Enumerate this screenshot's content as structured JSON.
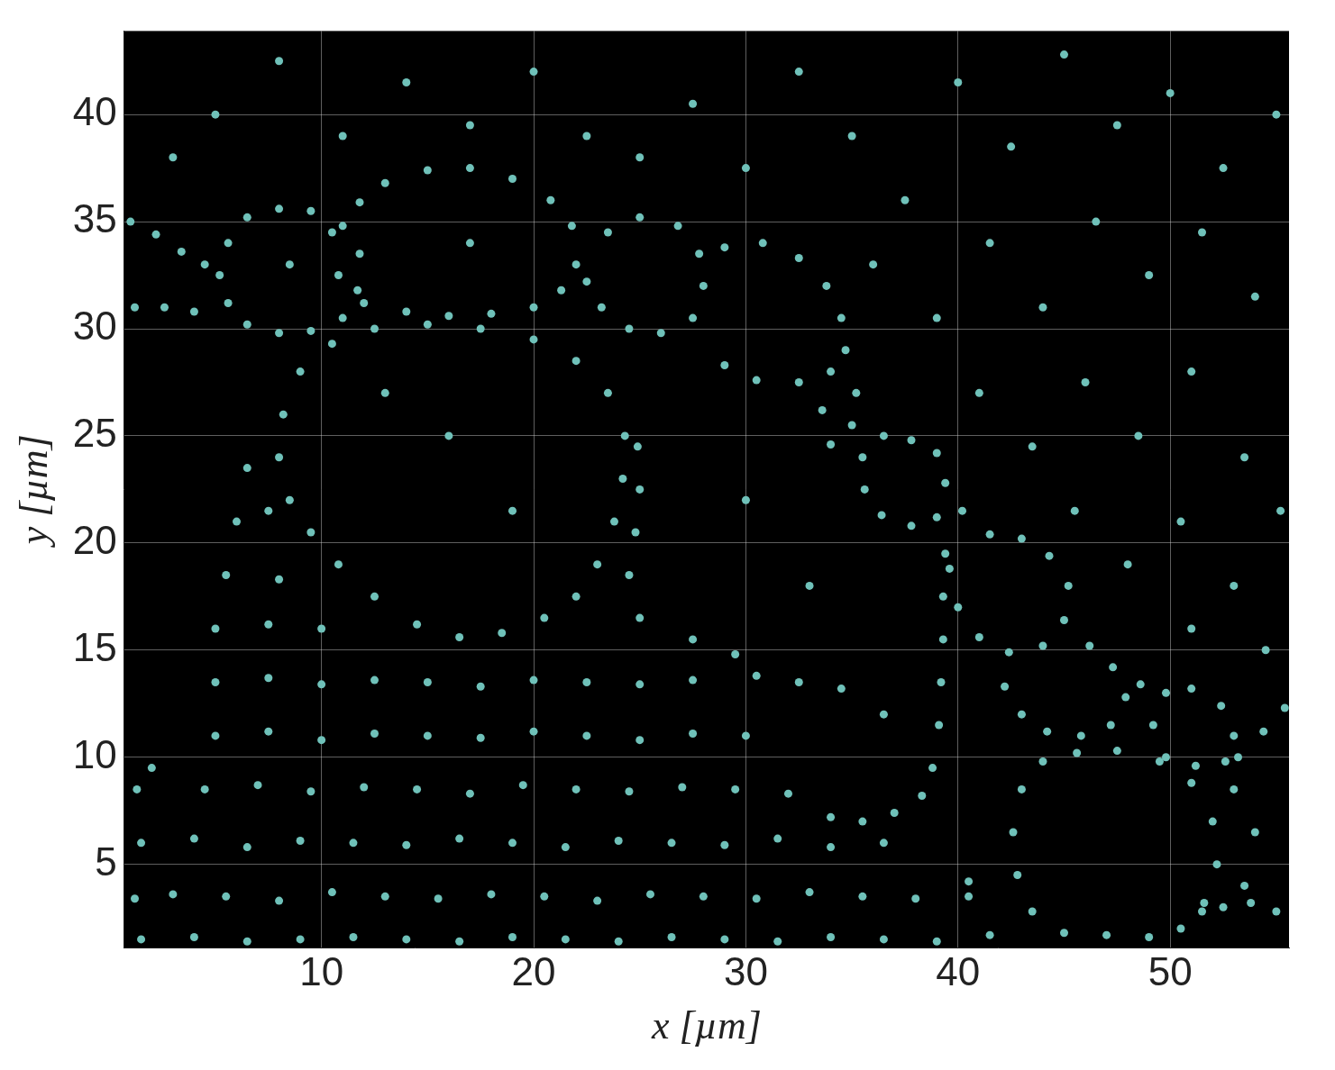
{
  "chart_data": {
    "type": "scatter",
    "x_label": "x [µm]",
    "y_label": "y [µm]",
    "xlim": [
      0.7,
      55.6
    ],
    "ylim": [
      1.1,
      43.9
    ],
    "xticks": [
      10,
      20,
      30,
      40,
      50
    ],
    "yticks": [
      5,
      10,
      15,
      20,
      25,
      30,
      35,
      40
    ],
    "grid": true,
    "color": "#6fc1b9",
    "marker": "circle",
    "x": [
      1.0,
      2.2,
      3.4,
      4.5,
      1.2,
      2.6,
      4.0,
      5.2,
      5.6,
      6.5,
      8.0,
      9.5,
      11.0,
      11.8,
      11.7,
      11.0,
      9.5,
      8.0,
      6.5,
      5.6,
      10.5,
      11.8,
      13.0,
      15.0,
      17.0,
      19.0,
      20.8,
      21.8,
      22.0,
      21.3,
      20.0,
      18.0,
      16.0,
      14.0,
      12.0,
      10.8,
      8.0,
      8.2,
      9.0,
      10.5,
      12.5,
      15.0,
      17.5,
      20.0,
      22.0,
      23.5,
      24.3,
      24.2,
      23.8,
      23.0,
      22.0,
      20.5,
      18.5,
      16.5,
      14.5,
      12.5,
      10.8,
      9.5,
      8.5,
      22.5,
      23.5,
      25.0,
      26.8,
      27.8,
      28.0,
      27.5,
      26.0,
      24.5,
      23.2,
      29.0,
      30.8,
      32.5,
      33.8,
      34.5,
      34.7,
      34.0,
      32.5,
      30.5,
      29.0,
      35.2,
      35.0,
      34.0,
      33.6,
      35.5,
      36.5,
      37.8,
      39.0,
      39.4,
      39.0,
      37.8,
      36.4,
      35.6,
      40.2,
      41.5,
      43.0,
      44.3,
      45.2,
      45.0,
      44.0,
      42.4,
      41.0,
      40.0,
      39.6,
      46.2,
      47.3,
      47.9,
      47.2,
      45.8,
      44.2,
      43.0,
      42.2,
      48.6,
      49.8,
      39.4,
      39.3,
      39.3,
      39.2,
      39.1,
      38.8,
      38.3,
      37.0,
      35.5,
      34.0,
      51.0,
      52.4,
      53.0,
      52.6,
      51.2,
      49.8,
      49.2,
      44.0,
      45.6,
      47.5,
      49.5,
      51.0,
      52.0,
      52.2,
      51.6,
      50.5,
      43.0,
      42.6,
      42.8,
      43.5,
      53.2,
      54.4,
      55.4,
      53.0,
      54.0,
      53.5,
      51.5,
      52.5,
      53.8,
      55.0,
      45.0,
      47.0,
      49.0,
      40.5,
      1.5,
      4.0,
      6.5,
      9.0,
      11.5,
      14.0,
      16.5,
      19.0,
      21.5,
      24.0,
      26.5,
      29.0,
      31.5,
      34.0,
      36.5,
      39.0,
      41.5,
      1.2,
      3.0,
      5.5,
      8.0,
      10.5,
      13.0,
      15.5,
      18.0,
      20.5,
      23.0,
      25.5,
      28.0,
      30.5,
      33.0,
      35.5,
      38.0,
      40.5,
      1.5,
      4.0,
      6.5,
      9.0,
      11.5,
      14.0,
      16.5,
      19.0,
      21.5,
      24.0,
      26.5,
      29.0,
      31.5,
      34.0,
      36.5,
      4.5,
      7.0,
      9.5,
      12.0,
      14.5,
      17.0,
      19.5,
      22.0,
      24.5,
      27.0,
      29.5,
      32.0,
      5.0,
      7.5,
      10.0,
      12.5,
      15.0,
      17.5,
      20.0,
      22.5,
      25.0,
      27.5,
      30.0,
      5.0,
      7.5,
      10.0,
      12.5,
      15.0,
      17.5,
      20.0,
      22.5,
      25.0,
      27.5,
      30.5,
      32.5,
      34.5,
      5.0,
      7.5,
      10.0,
      5.5,
      8.0,
      6.0,
      7.5,
      6.5,
      25.0,
      27.5,
      29.5,
      24.5,
      24.8,
      25.0,
      24.9,
      1.3,
      2.0,
      25.0,
      27.5,
      30.0,
      32.5,
      35.0,
      37.5,
      40.0,
      42.5,
      45.0,
      47.5,
      50.0,
      52.5,
      55.0,
      36.0,
      39.0,
      41.5,
      44.0,
      46.5,
      49.0,
      51.5,
      54.0,
      41.0,
      43.5,
      46.0,
      48.5,
      51.0,
      53.5,
      45.5,
      48.0,
      50.5,
      53.0,
      55.2,
      51.0,
      54.5,
      5.0,
      8.0,
      11.0,
      14.0,
      17.0,
      20.0,
      22.5,
      3.0,
      16.0,
      19.0,
      13.0,
      30.0,
      33.0,
      36.5,
      8.5,
      17.0
    ],
    "values": [
      35.0,
      34.4,
      33.6,
      33.0,
      31.0,
      31.0,
      30.8,
      32.5,
      34.0,
      35.2,
      35.6,
      35.5,
      34.8,
      33.5,
      31.8,
      30.5,
      29.9,
      29.8,
      30.2,
      31.2,
      34.5,
      35.9,
      36.8,
      37.4,
      37.5,
      37.0,
      36.0,
      34.8,
      33.0,
      31.8,
      31.0,
      30.7,
      30.6,
      30.8,
      31.2,
      32.5,
      24.0,
      26.0,
      28.0,
      29.3,
      30.0,
      30.2,
      30.0,
      29.5,
      28.5,
      27.0,
      25.0,
      23.0,
      21.0,
      19.0,
      17.5,
      16.5,
      15.8,
      15.6,
      16.2,
      17.5,
      19.0,
      20.5,
      22.0,
      32.2,
      34.5,
      35.2,
      34.8,
      33.5,
      32.0,
      30.5,
      29.8,
      30.0,
      31.0,
      33.8,
      34.0,
      33.3,
      32.0,
      30.5,
      29.0,
      28.0,
      27.5,
      27.6,
      28.3,
      27.0,
      25.5,
      24.6,
      26.2,
      24.0,
      25.0,
      24.8,
      24.2,
      22.8,
      21.2,
      20.8,
      21.3,
      22.5,
      21.5,
      20.4,
      20.2,
      19.4,
      18.0,
      16.4,
      15.2,
      14.9,
      15.6,
      17.0,
      18.8,
      15.2,
      14.2,
      12.8,
      11.5,
      11.0,
      11.2,
      12.0,
      13.3,
      13.4,
      13.0,
      19.5,
      17.5,
      15.5,
      13.5,
      11.5,
      9.5,
      8.2,
      7.4,
      7.0,
      7.2,
      13.2,
      12.4,
      11.0,
      9.8,
      9.6,
      10.0,
      11.5,
      9.8,
      10.2,
      10.3,
      9.8,
      8.8,
      7.0,
      5.0,
      3.2,
      2.0,
      8.5,
      6.5,
      4.5,
      2.8,
      10.0,
      11.2,
      12.3,
      8.5,
      6.5,
      4.0,
      2.8,
      3.0,
      3.2,
      2.8,
      1.8,
      1.7,
      1.6,
      3.5,
      1.5,
      1.6,
      1.4,
      1.5,
      1.6,
      1.5,
      1.4,
      1.6,
      1.5,
      1.4,
      1.6,
      1.5,
      1.4,
      1.6,
      1.5,
      1.4,
      1.7,
      3.4,
      3.6,
      3.5,
      3.3,
      3.7,
      3.5,
      3.4,
      3.6,
      3.5,
      3.3,
      3.6,
      3.5,
      3.4,
      3.7,
      3.5,
      3.4,
      4.2,
      6.0,
      6.2,
      5.8,
      6.1,
      6.0,
      5.9,
      6.2,
      6.0,
      5.8,
      6.1,
      6.0,
      5.9,
      6.2,
      5.8,
      6.0,
      8.5,
      8.7,
      8.4,
      8.6,
      8.5,
      8.3,
      8.7,
      8.5,
      8.4,
      8.6,
      8.5,
      8.3,
      11.0,
      11.2,
      10.8,
      11.1,
      11.0,
      10.9,
      11.2,
      11.0,
      10.8,
      11.1,
      11.0,
      13.5,
      13.7,
      13.4,
      13.6,
      13.5,
      13.3,
      13.6,
      13.5,
      13.4,
      13.6,
      13.8,
      13.5,
      13.2,
      16.0,
      16.2,
      16.0,
      18.5,
      18.3,
      21.0,
      21.5,
      23.5,
      16.5,
      15.5,
      14.8,
      18.5,
      20.5,
      22.5,
      24.5,
      8.5,
      9.5,
      38.0,
      40.5,
      37.5,
      42.0,
      39.0,
      36.0,
      41.5,
      38.5,
      42.8,
      39.5,
      41.0,
      37.5,
      40.0,
      33.0,
      30.5,
      34.0,
      31.0,
      35.0,
      32.5,
      34.5,
      31.5,
      27.0,
      24.5,
      27.5,
      25.0,
      28.0,
      24.0,
      21.5,
      19.0,
      21.0,
      18.0,
      21.5,
      16.0,
      15.0,
      40.0,
      42.5,
      39.0,
      41.5,
      39.5,
      42.0,
      39.0,
      38.0,
      25.0,
      21.5,
      27.0,
      22.0,
      18.0,
      12.0,
      33.0,
      34.0
    ]
  }
}
